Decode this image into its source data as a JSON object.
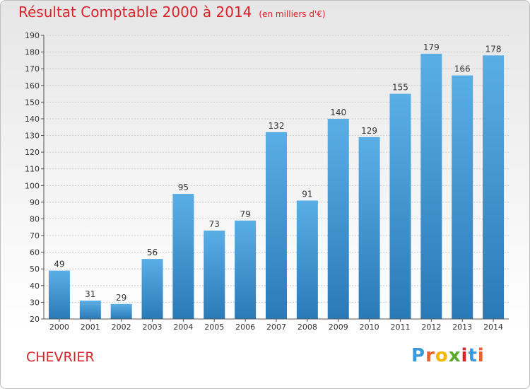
{
  "title": {
    "main": "Résultat Comptable 2000 à 2014",
    "unit": "(en milliers d'€)"
  },
  "location": "CHEVRIER",
  "brand": {
    "name": "Proxiti",
    "letter_colors": [
      "#3a9ad9",
      "#e8612c",
      "#f2b600",
      "#5aaa2d",
      "#d8232a",
      "#3a9ad9",
      "#e8612c"
    ]
  },
  "colors": {
    "accent": "#d8232a",
    "bar_top": "#5aaee6",
    "bar_bottom": "#2a7ab8",
    "grid": "#cccccc"
  },
  "chart_data": {
    "type": "bar",
    "categories": [
      "2000",
      "2001",
      "2002",
      "2003",
      "2004",
      "2005",
      "2006",
      "2007",
      "2008",
      "2009",
      "2010",
      "2011",
      "2012",
      "2013",
      "2014"
    ],
    "values": [
      49,
      31,
      29,
      56,
      95,
      73,
      79,
      132,
      91,
      140,
      129,
      155,
      179,
      166,
      178
    ],
    "title": "Résultat Comptable 2000 à 2014",
    "subtitle": "(en milliers d'€)",
    "xlabel": "",
    "ylabel": "",
    "ylim": [
      20,
      190
    ],
    "yticks": [
      20,
      30,
      40,
      50,
      60,
      70,
      80,
      90,
      100,
      110,
      120,
      130,
      140,
      150,
      160,
      170,
      180,
      190
    ],
    "grid": true,
    "data_labels": true
  }
}
